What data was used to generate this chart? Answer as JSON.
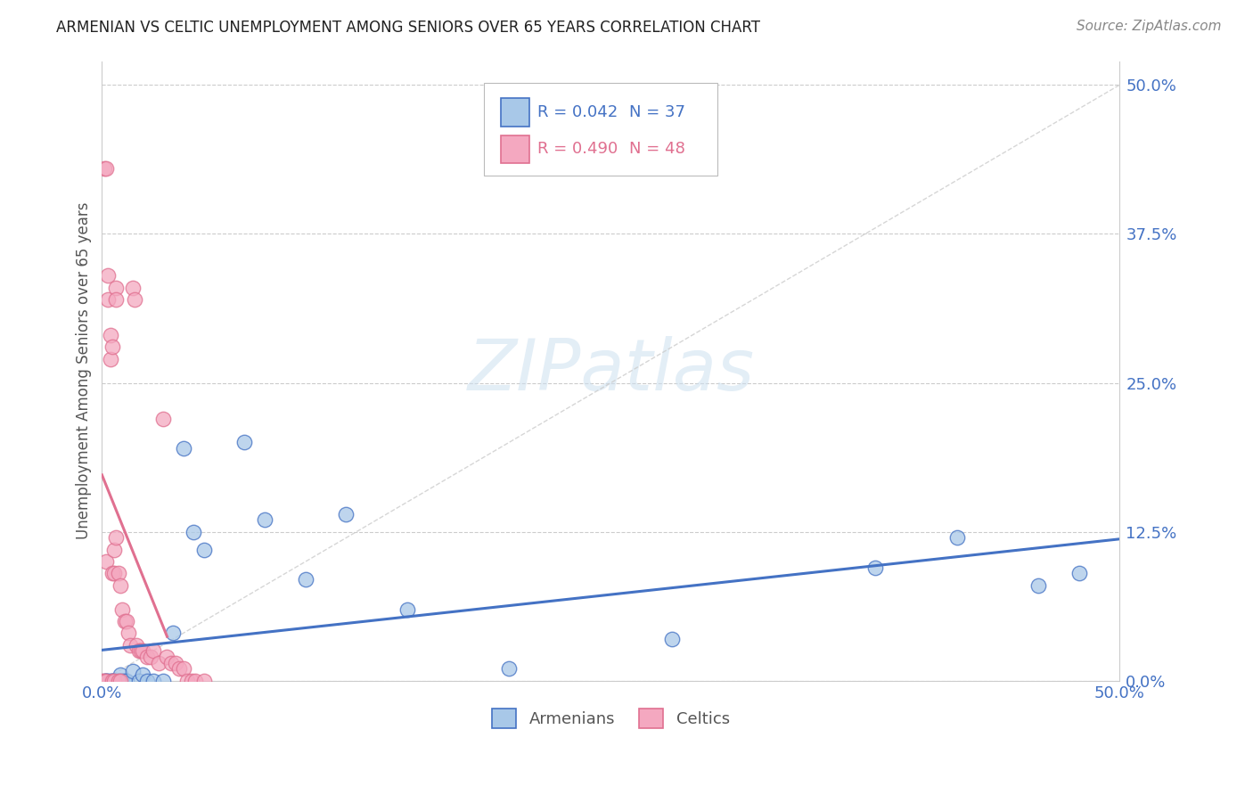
{
  "title": "ARMENIAN VS CELTIC UNEMPLOYMENT AMONG SENIORS OVER 65 YEARS CORRELATION CHART",
  "source": "Source: ZipAtlas.com",
  "ylabel": "Unemployment Among Seniors over 65 years",
  "ytick_labels": [
    "0.0%",
    "12.5%",
    "25.0%",
    "37.5%",
    "50.0%"
  ],
  "ytick_values": [
    0.0,
    0.125,
    0.25,
    0.375,
    0.5
  ],
  "xtick_labels": [
    "0.0%",
    "50.0%"
  ],
  "xtick_values": [
    0.0,
    0.5
  ],
  "xlim": [
    0.0,
    0.5
  ],
  "ylim": [
    0.0,
    0.52
  ],
  "legend_armenians_label": "Armenians",
  "legend_celtics_label": "Celtics",
  "legend_r_armenian": "R = 0.042",
  "legend_n_armenian": "N = 37",
  "legend_r_celtic": "R = 0.490",
  "legend_n_celtic": "N = 48",
  "color_armenian_face": "#a8c8e8",
  "color_armenian_edge": "#4472c4",
  "color_celtic_face": "#f4a8c0",
  "color_celtic_edge": "#e07090",
  "color_armenian_line": "#4472c4",
  "color_celtic_line": "#e07090",
  "color_diagonal": "#cccccc",
  "color_title": "#222222",
  "color_source": "#888888",
  "color_axis_labels": "#4472c4",
  "background_color": "#ffffff",
  "grid_color": "#cccccc",
  "armenian_x": [
    0.001,
    0.002,
    0.002,
    0.003,
    0.004,
    0.005,
    0.005,
    0.006,
    0.006,
    0.007,
    0.008,
    0.008,
    0.009,
    0.01,
    0.011,
    0.012,
    0.015,
    0.018,
    0.02,
    0.022,
    0.025,
    0.03,
    0.035,
    0.04,
    0.045,
    0.05,
    0.07,
    0.08,
    0.1,
    0.12,
    0.15,
    0.2,
    0.28,
    0.38,
    0.42,
    0.46,
    0.48
  ],
  "armenian_y": [
    0.0,
    0.0,
    0.0,
    0.0,
    0.0,
    0.0,
    0.0,
    0.0,
    0.0,
    0.0,
    0.0,
    0.0,
    0.005,
    0.0,
    0.0,
    0.0,
    0.008,
    0.0,
    0.005,
    0.0,
    0.0,
    0.0,
    0.04,
    0.195,
    0.125,
    0.11,
    0.2,
    0.135,
    0.085,
    0.14,
    0.06,
    0.01,
    0.035,
    0.095,
    0.12,
    0.08,
    0.09
  ],
  "celtic_x": [
    0.0,
    0.001,
    0.001,
    0.002,
    0.002,
    0.002,
    0.003,
    0.003,
    0.004,
    0.004,
    0.005,
    0.005,
    0.005,
    0.006,
    0.006,
    0.006,
    0.007,
    0.007,
    0.007,
    0.008,
    0.008,
    0.009,
    0.009,
    0.01,
    0.011,
    0.012,
    0.013,
    0.014,
    0.015,
    0.016,
    0.017,
    0.018,
    0.019,
    0.02,
    0.022,
    0.024,
    0.025,
    0.028,
    0.03,
    0.032,
    0.034,
    0.036,
    0.038,
    0.04,
    0.042,
    0.044,
    0.046,
    0.05
  ],
  "celtic_y": [
    0.0,
    0.43,
    0.0,
    0.43,
    0.1,
    0.0,
    0.34,
    0.32,
    0.29,
    0.27,
    0.28,
    0.09,
    0.0,
    0.11,
    0.09,
    0.0,
    0.33,
    0.32,
    0.12,
    0.09,
    0.0,
    0.08,
    0.0,
    0.06,
    0.05,
    0.05,
    0.04,
    0.03,
    0.33,
    0.32,
    0.03,
    0.025,
    0.025,
    0.025,
    0.02,
    0.02,
    0.025,
    0.015,
    0.22,
    0.02,
    0.015,
    0.015,
    0.01,
    0.01,
    0.0,
    0.0,
    0.0,
    0.0
  ],
  "marker_size": 140,
  "marker_alpha": 0.75
}
